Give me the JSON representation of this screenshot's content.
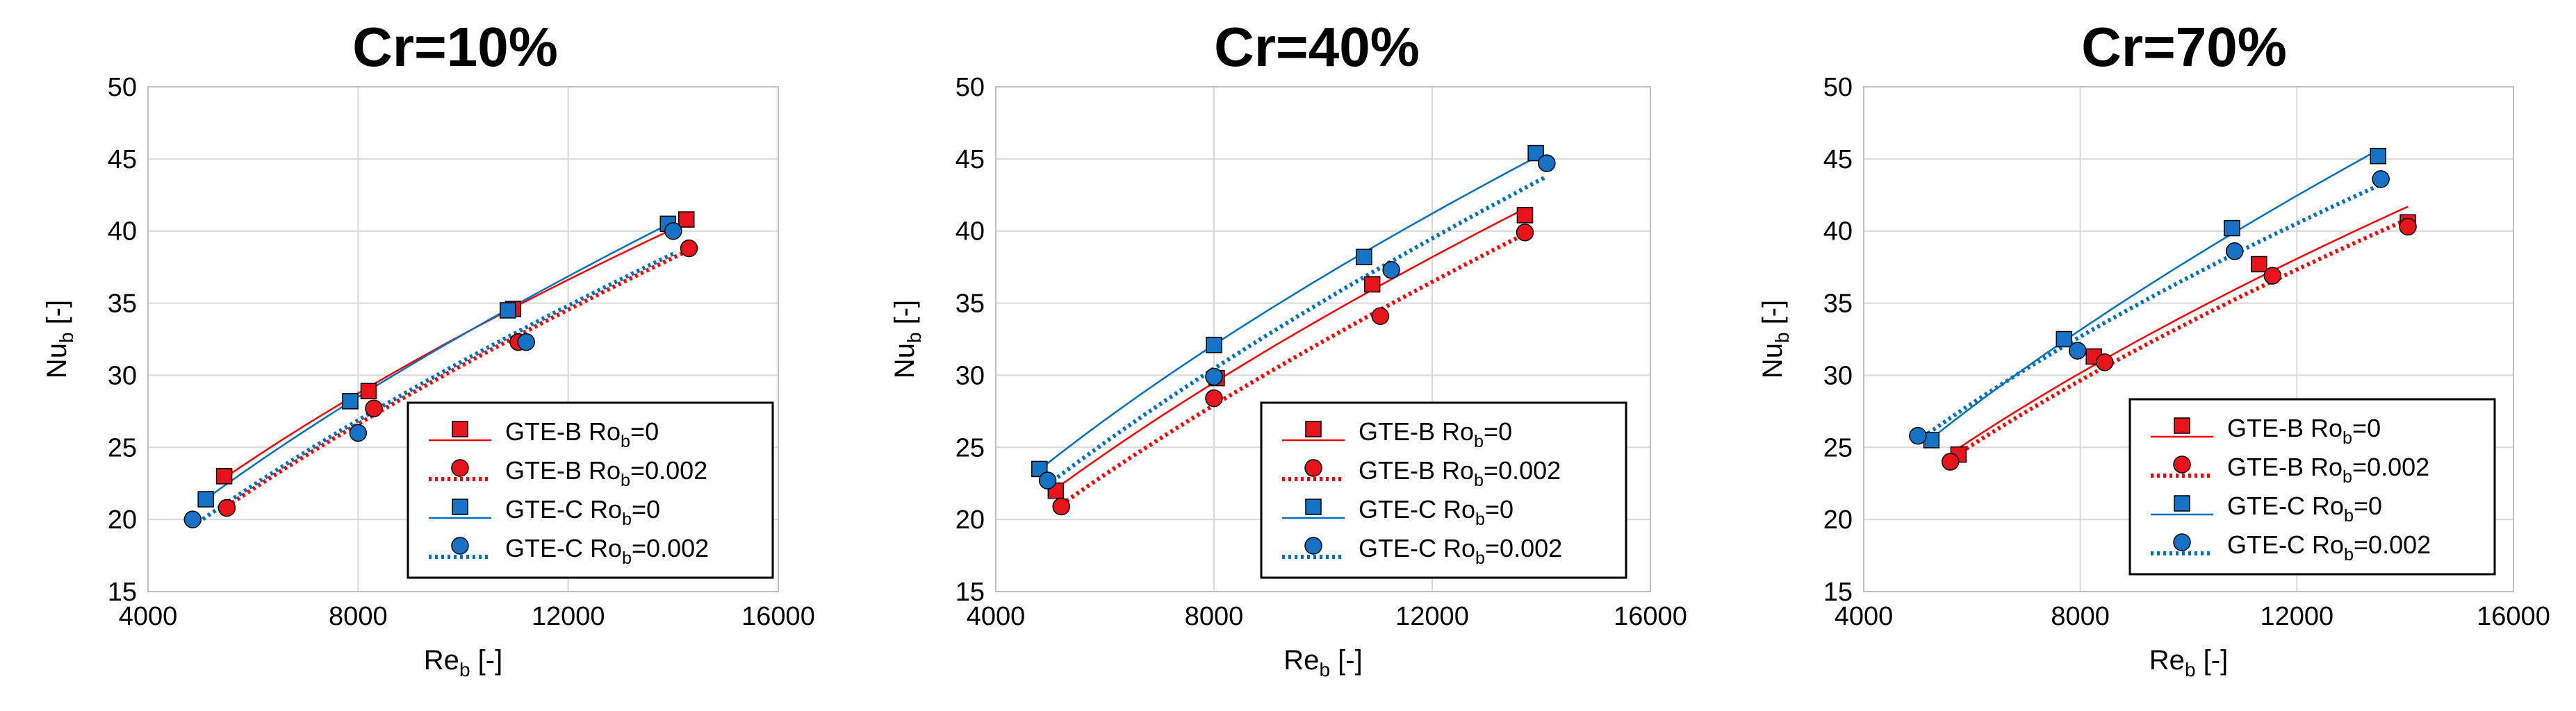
{
  "chart_data": [
    {
      "type": "scatter",
      "title": "Cr=10%",
      "xlabel": {
        "main": "Re",
        "sub": "b",
        "unit": " [-]"
      },
      "ylabel": {
        "main": "Nu",
        "sub": "b",
        "unit": " [-]"
      },
      "xlim": [
        4000,
        16000
      ],
      "ylim": [
        15,
        50
      ],
      "xticks": [
        "4000",
        "8000",
        "12000",
        "16000"
      ],
      "yticks": [
        "15",
        "20",
        "25",
        "30",
        "35",
        "40",
        "45",
        "50"
      ],
      "grid": true,
      "legend_position": "bottom-right",
      "series": [
        {
          "name": "GTE-B Ro_b=0",
          "legend": {
            "main": "GTE-B Ro",
            "sub": "b",
            "suffix": "=0"
          },
          "x": [
            5450,
            8200,
            10950,
            14250
          ],
          "y": [
            23.0,
            28.9,
            34.6,
            40.8
          ]
        },
        {
          "name": "GTE-B Ro_b=0.002",
          "legend": {
            "main": "GTE-B Ro",
            "sub": "b",
            "suffix": "=0.002"
          },
          "x": [
            5500,
            8300,
            11050,
            14300
          ],
          "y": [
            20.8,
            27.7,
            32.3,
            38.8
          ]
        },
        {
          "name": "GTE-C Ro_b=0",
          "legend": {
            "main": "GTE-C Ro",
            "sub": "b",
            "suffix": "=0"
          },
          "x": [
            5100,
            7850,
            10850,
            13900
          ],
          "y": [
            21.4,
            28.2,
            34.5,
            40.5
          ]
        },
        {
          "name": "GTE-C Ro_b=0.002",
          "legend": {
            "main": "GTE-C Ro",
            "sub": "b",
            "suffix": "=0.002"
          },
          "x": [
            4850,
            8000,
            11200,
            14000
          ],
          "y": [
            20.0,
            26.0,
            32.3,
            40.0
          ]
        }
      ]
    },
    {
      "type": "scatter",
      "title": "Cr=40%",
      "xlabel": {
        "main": "Re",
        "sub": "b",
        "unit": " [-]"
      },
      "ylabel": {
        "main": "Nu",
        "sub": "b",
        "unit": " [-]"
      },
      "xlim": [
        4000,
        16000
      ],
      "ylim": [
        15,
        50
      ],
      "xticks": [
        "4000",
        "8000",
        "12000",
        "16000"
      ],
      "yticks": [
        "15",
        "20",
        "25",
        "30",
        "35",
        "40",
        "45",
        "50"
      ],
      "grid": true,
      "legend_position": "bottom-right",
      "series": [
        {
          "name": "GTE-B Ro_b=0",
          "legend": {
            "main": "GTE-B Ro",
            "sub": "b",
            "suffix": "=0"
          },
          "x": [
            5100,
            8050,
            10900,
            13700
          ],
          "y": [
            22.0,
            29.8,
            36.3,
            41.1
          ]
        },
        {
          "name": "GTE-B Ro_b=0.002",
          "legend": {
            "main": "GTE-B Ro",
            "sub": "b",
            "suffix": "=0.002"
          },
          "x": [
            5200,
            8000,
            11050,
            13700
          ],
          "y": [
            20.9,
            28.4,
            34.1,
            39.9
          ]
        },
        {
          "name": "GTE-C Ro_b=0",
          "legend": {
            "main": "GTE-C Ro",
            "sub": "b",
            "suffix": "=0"
          },
          "x": [
            4800,
            8000,
            10750,
            13900
          ],
          "y": [
            23.5,
            32.1,
            38.2,
            45.4
          ]
        },
        {
          "name": "GTE-C Ro_b=0.002",
          "legend": {
            "main": "GTE-C Ro",
            "sub": "b",
            "suffix": "=0.002"
          },
          "x": [
            4950,
            8000,
            11250,
            14100
          ],
          "y": [
            22.7,
            29.9,
            37.3,
            44.7
          ]
        }
      ]
    },
    {
      "type": "scatter",
      "title": "Cr=70%",
      "xlabel": {
        "main": "Re",
        "sub": "b",
        "unit": " [-]"
      },
      "ylabel": {
        "main": "Nu",
        "sub": "b",
        "unit": " [-]"
      },
      "xlim": [
        4000,
        16000
      ],
      "ylim": [
        15,
        50
      ],
      "xticks": [
        "4000",
        "8000",
        "12000",
        "16000"
      ],
      "yticks": [
        "15",
        "20",
        "25",
        "30",
        "35",
        "40",
        "45",
        "50"
      ],
      "grid": true,
      "legend_position": "bottom-right",
      "series": [
        {
          "name": "GTE-B Ro_b=0",
          "legend": {
            "main": "GTE-B Ro",
            "sub": "b",
            "suffix": "=0"
          },
          "x": [
            5750,
            8250,
            11300,
            14050
          ],
          "y": [
            24.5,
            31.3,
            37.7,
            40.6
          ]
        },
        {
          "name": "GTE-B Ro_b=0.002",
          "legend": {
            "main": "GTE-B Ro",
            "sub": "b",
            "suffix": "=0.002"
          },
          "x": [
            5600,
            8450,
            11550,
            14050
          ],
          "y": [
            24.0,
            30.9,
            36.9,
            40.3
          ]
        },
        {
          "name": "GTE-C Ro_b=0",
          "legend": {
            "main": "GTE-C Ro",
            "sub": "b",
            "suffix": "=0"
          },
          "x": [
            5250,
            7700,
            10800,
            13500
          ],
          "y": [
            25.5,
            32.5,
            40.2,
            45.2
          ]
        },
        {
          "name": "GTE-C Ro_b=0.002",
          "legend": {
            "main": "GTE-C Ro",
            "sub": "b",
            "suffix": "=0.002"
          },
          "x": [
            5000,
            7950,
            10850,
            13550
          ],
          "y": [
            25.8,
            31.7,
            38.6,
            43.6
          ]
        }
      ]
    }
  ],
  "colors": {
    "gte_b": "#ff0000",
    "gte_b_marker": "#e8141c",
    "gte_c": "#0070c0",
    "gte_c_marker": "#1572c4",
    "marker_edge": "#000000",
    "grid": "#d9d9d9",
    "frame": "#bfbfbf"
  },
  "series_style": [
    {
      "marker": "square",
      "color_key": "gte_b",
      "marker_color_key": "gte_b_marker",
      "line": "solid"
    },
    {
      "marker": "circle",
      "color_key": "gte_b",
      "marker_color_key": "gte_b_marker",
      "line": "dotted"
    },
    {
      "marker": "square",
      "color_key": "gte_c",
      "marker_color_key": "gte_c_marker",
      "line": "solid"
    },
    {
      "marker": "circle",
      "color_key": "gte_c",
      "marker_color_key": "gte_c_marker",
      "line": "dotted"
    }
  ]
}
